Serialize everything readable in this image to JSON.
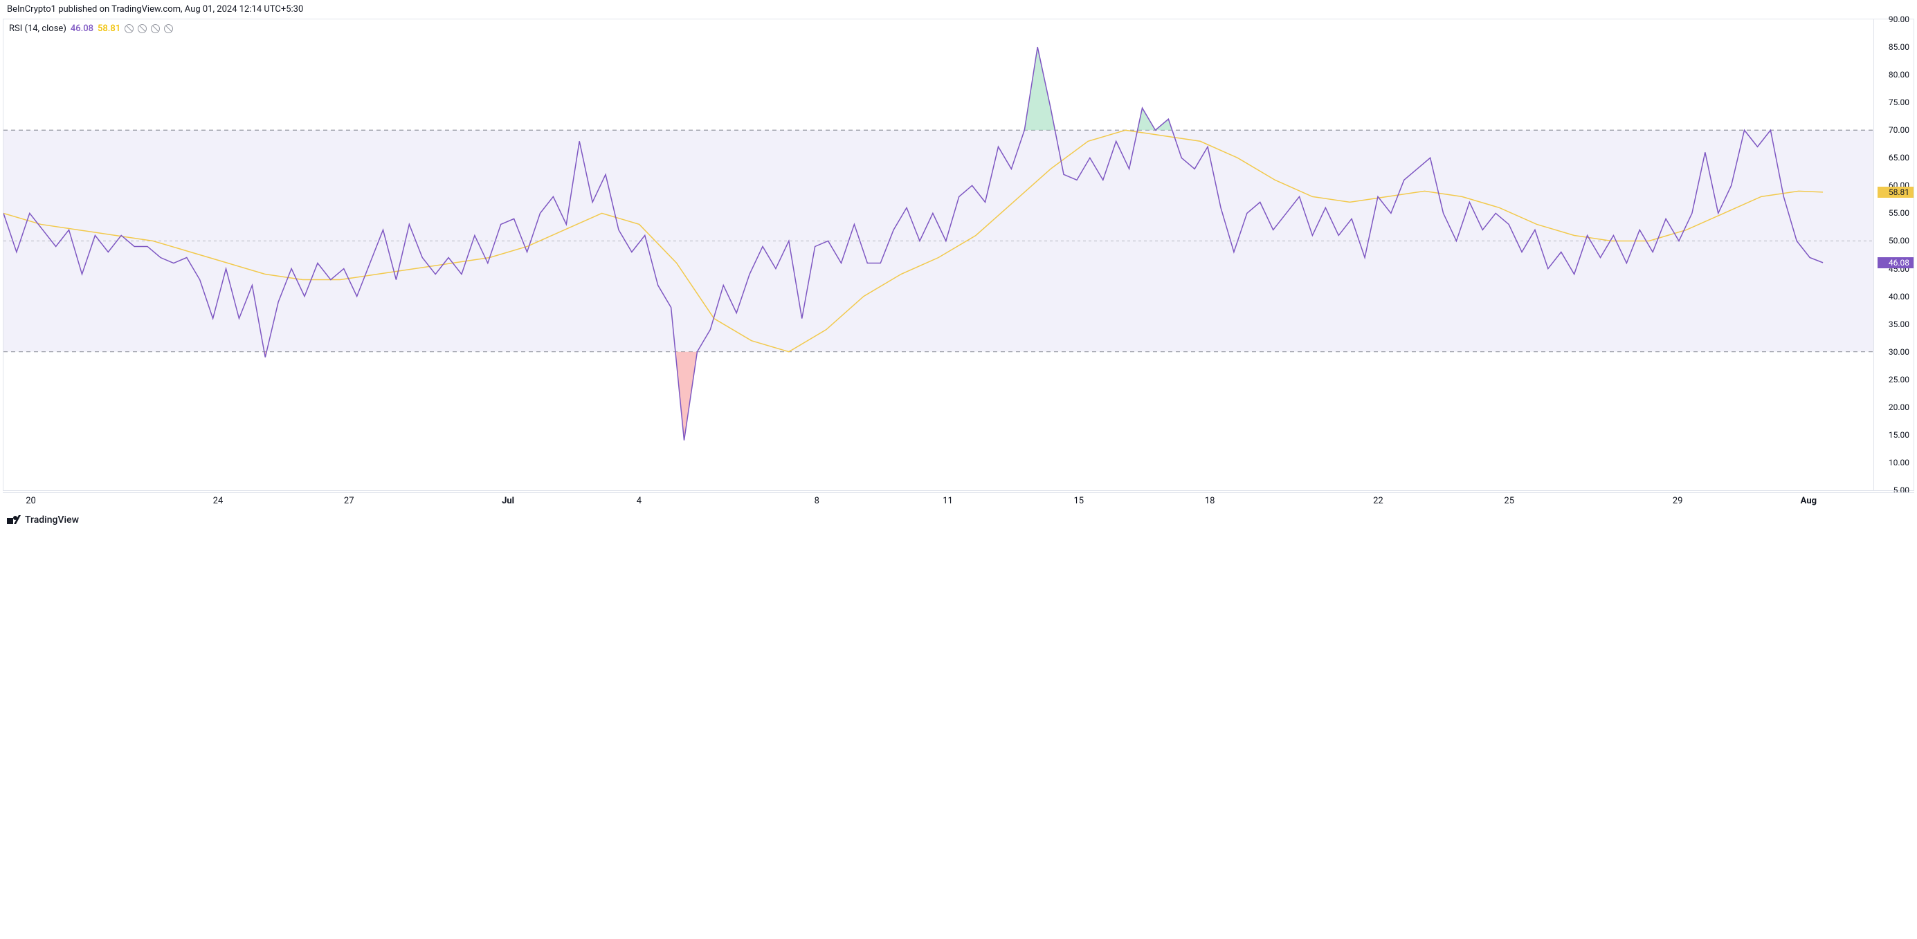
{
  "header": {
    "text": "BeInCrypto1 published on TradingView.com, Aug 01, 2024 12:14 UTC+5:30"
  },
  "legend": {
    "name": "RSI (14, close)",
    "value_purple": "46.08",
    "value_yellow": "58.81",
    "purple_color": "#7e57c2",
    "yellow_color": "#f0c000"
  },
  "footer": {
    "brand": "TradingView"
  },
  "chart": {
    "type": "line",
    "background_color": "#ffffff",
    "band_fill": "#e8e5f6",
    "band_opacity": 0.55,
    "grid_dash_color": "#9598a1",
    "midline_color": "#b2b5be",
    "purple_line_color": "#7e57c2",
    "yellow_line_color": "#f2c94c",
    "oversold_fill": "#f7a3a3",
    "overbought_fill": "#a7e0c3",
    "line_width_purple": 1.5,
    "line_width_yellow": 1.5,
    "ylim": [
      5,
      90
    ],
    "upper_band": 70,
    "lower_band": 30,
    "midline": 50,
    "y_ticks": [
      90,
      85,
      80,
      75,
      70,
      65,
      60,
      55,
      50,
      45,
      40,
      35,
      30,
      25,
      20,
      15,
      10,
      5
    ],
    "y_tick_labels": [
      "90.00",
      "85.00",
      "80.00",
      "75.00",
      "70.00",
      "65.00",
      "60.00",
      "55.00",
      "50.00",
      "45.00",
      "40.00",
      "35.00",
      "30.00",
      "25.00",
      "20.00",
      "15.00",
      "10.00",
      "5.00"
    ],
    "y_badges": [
      {
        "value": 58.81,
        "label": "58.81",
        "bg": "#f2c94c",
        "fg": "#131722"
      },
      {
        "value": 46.08,
        "label": "46.08",
        "bg": "#7e57c2",
        "fg": "#ffffff"
      }
    ],
    "x_ticks": [
      {
        "pos": 0.015,
        "label": "20",
        "bold": false
      },
      {
        "pos": 0.115,
        "label": "24",
        "bold": false
      },
      {
        "pos": 0.185,
        "label": "27",
        "bold": false
      },
      {
        "pos": 0.27,
        "label": "Jul",
        "bold": true
      },
      {
        "pos": 0.34,
        "label": "4",
        "bold": false
      },
      {
        "pos": 0.435,
        "label": "8",
        "bold": false
      },
      {
        "pos": 0.505,
        "label": "11",
        "bold": false
      },
      {
        "pos": 0.575,
        "label": "15",
        "bold": false
      },
      {
        "pos": 0.645,
        "label": "18",
        "bold": false
      },
      {
        "pos": 0.735,
        "label": "22",
        "bold": false
      },
      {
        "pos": 0.805,
        "label": "25",
        "bold": false
      },
      {
        "pos": 0.895,
        "label": "29",
        "bold": false
      },
      {
        "pos": 0.965,
        "label": "Aug",
        "bold": true
      }
    ],
    "purple_series": [
      [
        0.0,
        55
      ],
      [
        0.007,
        48
      ],
      [
        0.014,
        55
      ],
      [
        0.021,
        52
      ],
      [
        0.028,
        49
      ],
      [
        0.035,
        52
      ],
      [
        0.042,
        44
      ],
      [
        0.049,
        51
      ],
      [
        0.056,
        48
      ],
      [
        0.063,
        51
      ],
      [
        0.07,
        49
      ],
      [
        0.077,
        49
      ],
      [
        0.084,
        47
      ],
      [
        0.091,
        46
      ],
      [
        0.098,
        47
      ],
      [
        0.105,
        43
      ],
      [
        0.112,
        36
      ],
      [
        0.119,
        45
      ],
      [
        0.126,
        36
      ],
      [
        0.133,
        42
      ],
      [
        0.14,
        29
      ],
      [
        0.147,
        39
      ],
      [
        0.154,
        45
      ],
      [
        0.161,
        40
      ],
      [
        0.168,
        46
      ],
      [
        0.175,
        43
      ],
      [
        0.182,
        45
      ],
      [
        0.189,
        40
      ],
      [
        0.196,
        46
      ],
      [
        0.203,
        52
      ],
      [
        0.21,
        43
      ],
      [
        0.217,
        53
      ],
      [
        0.224,
        47
      ],
      [
        0.231,
        44
      ],
      [
        0.238,
        47
      ],
      [
        0.245,
        44
      ],
      [
        0.252,
        51
      ],
      [
        0.259,
        46
      ],
      [
        0.266,
        53
      ],
      [
        0.273,
        54
      ],
      [
        0.28,
        48
      ],
      [
        0.287,
        55
      ],
      [
        0.294,
        58
      ],
      [
        0.301,
        53
      ],
      [
        0.308,
        68
      ],
      [
        0.315,
        57
      ],
      [
        0.322,
        62
      ],
      [
        0.329,
        52
      ],
      [
        0.336,
        48
      ],
      [
        0.343,
        51
      ],
      [
        0.35,
        42
      ],
      [
        0.357,
        38
      ],
      [
        0.364,
        14
      ],
      [
        0.371,
        30
      ],
      [
        0.378,
        34
      ],
      [
        0.385,
        42
      ],
      [
        0.392,
        37
      ],
      [
        0.399,
        44
      ],
      [
        0.406,
        49
      ],
      [
        0.413,
        45
      ],
      [
        0.42,
        50
      ],
      [
        0.427,
        36
      ],
      [
        0.434,
        49
      ],
      [
        0.441,
        50
      ],
      [
        0.448,
        46
      ],
      [
        0.455,
        53
      ],
      [
        0.462,
        46
      ],
      [
        0.469,
        46
      ],
      [
        0.476,
        52
      ],
      [
        0.483,
        56
      ],
      [
        0.49,
        50
      ],
      [
        0.497,
        55
      ],
      [
        0.504,
        50
      ],
      [
        0.511,
        58
      ],
      [
        0.518,
        60
      ],
      [
        0.525,
        57
      ],
      [
        0.532,
        67
      ],
      [
        0.539,
        63
      ],
      [
        0.546,
        70
      ],
      [
        0.553,
        85
      ],
      [
        0.56,
        74
      ],
      [
        0.567,
        62
      ],
      [
        0.574,
        61
      ],
      [
        0.581,
        65
      ],
      [
        0.588,
        61
      ],
      [
        0.595,
        68
      ],
      [
        0.602,
        63
      ],
      [
        0.609,
        74
      ],
      [
        0.616,
        70
      ],
      [
        0.623,
        72
      ],
      [
        0.63,
        65
      ],
      [
        0.637,
        63
      ],
      [
        0.644,
        67
      ],
      [
        0.651,
        56
      ],
      [
        0.658,
        48
      ],
      [
        0.665,
        55
      ],
      [
        0.672,
        57
      ],
      [
        0.679,
        52
      ],
      [
        0.686,
        55
      ],
      [
        0.693,
        58
      ],
      [
        0.7,
        51
      ],
      [
        0.707,
        56
      ],
      [
        0.714,
        51
      ],
      [
        0.721,
        54
      ],
      [
        0.728,
        47
      ],
      [
        0.735,
        58
      ],
      [
        0.742,
        55
      ],
      [
        0.749,
        61
      ],
      [
        0.756,
        63
      ],
      [
        0.763,
        65
      ],
      [
        0.77,
        55
      ],
      [
        0.777,
        50
      ],
      [
        0.784,
        57
      ],
      [
        0.791,
        52
      ],
      [
        0.798,
        55
      ],
      [
        0.805,
        53
      ],
      [
        0.812,
        48
      ],
      [
        0.819,
        52
      ],
      [
        0.826,
        45
      ],
      [
        0.833,
        48
      ],
      [
        0.84,
        44
      ],
      [
        0.847,
        51
      ],
      [
        0.854,
        47
      ],
      [
        0.861,
        51
      ],
      [
        0.868,
        46
      ],
      [
        0.875,
        52
      ],
      [
        0.882,
        48
      ],
      [
        0.889,
        54
      ],
      [
        0.896,
        50
      ],
      [
        0.903,
        55
      ],
      [
        0.91,
        66
      ],
      [
        0.917,
        55
      ],
      [
        0.924,
        60
      ],
      [
        0.931,
        70
      ],
      [
        0.938,
        67
      ],
      [
        0.945,
        70
      ],
      [
        0.952,
        58
      ],
      [
        0.959,
        50
      ],
      [
        0.966,
        47
      ],
      [
        0.973,
        46.08
      ]
    ],
    "yellow_series": [
      [
        0.0,
        55
      ],
      [
        0.02,
        53
      ],
      [
        0.04,
        52
      ],
      [
        0.06,
        51
      ],
      [
        0.08,
        50
      ],
      [
        0.1,
        48
      ],
      [
        0.12,
        46
      ],
      [
        0.14,
        44
      ],
      [
        0.16,
        43
      ],
      [
        0.18,
        43
      ],
      [
        0.2,
        44
      ],
      [
        0.22,
        45
      ],
      [
        0.24,
        46
      ],
      [
        0.26,
        47
      ],
      [
        0.28,
        49
      ],
      [
        0.3,
        52
      ],
      [
        0.32,
        55
      ],
      [
        0.34,
        53
      ],
      [
        0.36,
        46
      ],
      [
        0.38,
        36
      ],
      [
        0.4,
        32
      ],
      [
        0.42,
        30
      ],
      [
        0.44,
        34
      ],
      [
        0.46,
        40
      ],
      [
        0.48,
        44
      ],
      [
        0.5,
        47
      ],
      [
        0.52,
        51
      ],
      [
        0.54,
        57
      ],
      [
        0.56,
        63
      ],
      [
        0.58,
        68
      ],
      [
        0.6,
        70
      ],
      [
        0.62,
        69
      ],
      [
        0.64,
        68
      ],
      [
        0.66,
        65
      ],
      [
        0.68,
        61
      ],
      [
        0.7,
        58
      ],
      [
        0.72,
        57
      ],
      [
        0.74,
        58
      ],
      [
        0.76,
        59
      ],
      [
        0.78,
        58
      ],
      [
        0.8,
        56
      ],
      [
        0.82,
        53
      ],
      [
        0.84,
        51
      ],
      [
        0.86,
        50
      ],
      [
        0.88,
        50
      ],
      [
        0.9,
        52
      ],
      [
        0.92,
        55
      ],
      [
        0.94,
        58
      ],
      [
        0.96,
        59
      ],
      [
        0.973,
        58.81
      ]
    ]
  }
}
